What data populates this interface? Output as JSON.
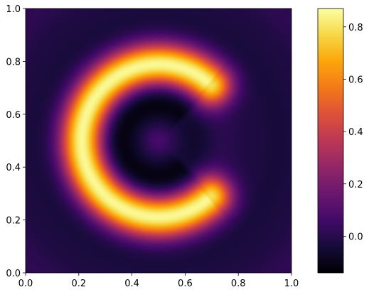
{
  "chart_data": [
    {
      "type": "heatmap",
      "title": "",
      "xlabel": "",
      "ylabel": "",
      "xlim": [
        0.0,
        1.0
      ],
      "ylim": [
        0.0,
        1.0
      ],
      "x_ticks": [
        "0.0",
        "0.2",
        "0.4",
        "0.6",
        "0.8",
        "1.0"
      ],
      "y_ticks": [
        "0.0",
        "0.2",
        "0.4",
        "0.6",
        "0.8",
        "1.0"
      ],
      "colormap": "inferno",
      "description_of_field": {
        "shape": "C-shaped ring",
        "center": [
          0.5,
          0.5
        ],
        "ring_radius": 0.29,
        "gap_opening_direction": "right",
        "gap_angle_degrees": [
          -40,
          40
        ],
        "peak_value": 0.85,
        "minimum_value": -0.12,
        "central_spot": [
          0.5,
          0.5
        ]
      },
      "grid": false,
      "legend": "none"
    },
    {
      "type": "colorbar",
      "range": [
        -0.14,
        0.87
      ],
      "ticks": [
        "0.0",
        "0.2",
        "0.4",
        "0.6",
        "0.8"
      ],
      "tick_values": [
        0.0,
        0.2,
        0.4,
        0.6,
        0.8
      ],
      "colormap": "inferno"
    }
  ]
}
